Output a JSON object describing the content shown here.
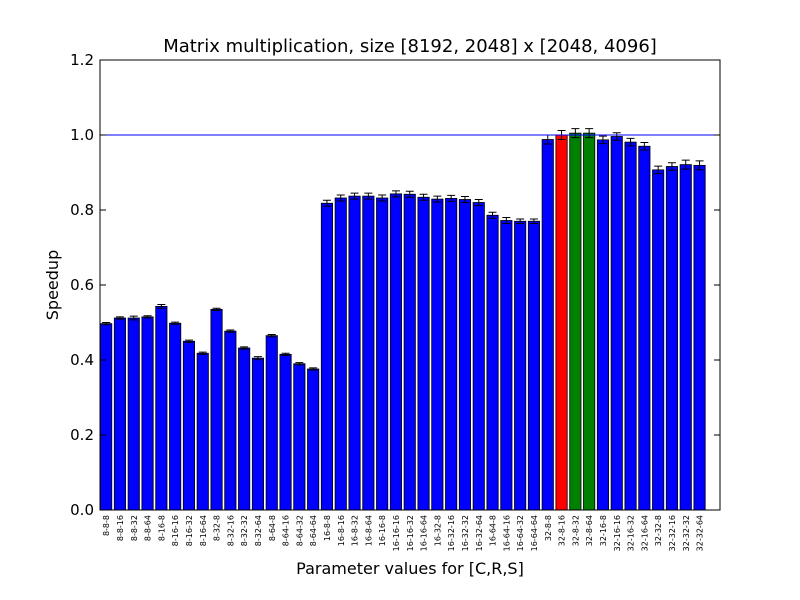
{
  "chart_data": {
    "type": "bar",
    "title": "Matrix multiplication, size [8192, 2048] x [2048, 4096]",
    "xlabel": "Parameter values for [C,R,S]",
    "ylabel": "Speedup",
    "ylim": [
      0.0,
      1.2
    ],
    "yticks": [
      "0.0",
      "0.2",
      "0.4",
      "0.6",
      "0.8",
      "1.0",
      "1.2"
    ],
    "reference_line": {
      "y": 1.0,
      "color": "#0000ff"
    },
    "grid": false,
    "colors": {
      "default": "#0000ff",
      "red": "#ff0000",
      "green": "#008000",
      "error_bar": "#000000"
    },
    "categories": [
      "8-8-8",
      "8-8-16",
      "8-8-32",
      "8-8-64",
      "8-16-8",
      "8-16-16",
      "8-16-32",
      "8-16-64",
      "8-32-8",
      "8-32-16",
      "8-32-32",
      "8-32-64",
      "8-64-8",
      "8-64-16",
      "8-64-32",
      "8-64-64",
      "16-8-8",
      "16-8-16",
      "16-8-32",
      "16-8-64",
      "16-16-8",
      "16-16-16",
      "16-16-32",
      "16-16-64",
      "16-32-8",
      "16-32-16",
      "16-32-32",
      "16-32-64",
      "16-64-8",
      "16-64-16",
      "16-64-32",
      "16-64-64",
      "32-8-8",
      "32-8-16",
      "32-8-32",
      "32-8-64",
      "32-16-8",
      "32-16-16",
      "32-16-32",
      "32-16-64",
      "32-32-8",
      "32-32-16",
      "32-32-32",
      "32-32-64"
    ],
    "values": [
      0.497,
      0.512,
      0.512,
      0.515,
      0.543,
      0.498,
      0.45,
      0.418,
      0.535,
      0.477,
      0.432,
      0.405,
      0.465,
      0.415,
      0.39,
      0.376,
      0.818,
      0.832,
      0.837,
      0.837,
      0.832,
      0.843,
      0.842,
      0.834,
      0.829,
      0.831,
      0.828,
      0.82,
      0.786,
      0.772,
      0.77,
      0.77,
      0.988,
      1.0,
      1.005,
      1.005,
      0.987,
      0.996,
      0.981,
      0.97,
      0.907,
      0.916,
      0.921,
      0.919
    ],
    "errors": [
      0.003,
      0.003,
      0.005,
      0.003,
      0.005,
      0.003,
      0.003,
      0.003,
      0.003,
      0.003,
      0.003,
      0.004,
      0.003,
      0.003,
      0.003,
      0.003,
      0.008,
      0.008,
      0.008,
      0.008,
      0.008,
      0.008,
      0.008,
      0.008,
      0.008,
      0.008,
      0.008,
      0.008,
      0.008,
      0.008,
      0.006,
      0.006,
      0.012,
      0.012,
      0.012,
      0.012,
      0.01,
      0.01,
      0.01,
      0.01,
      0.01,
      0.01,
      0.012,
      0.012
    ],
    "bar_colors": [
      "default",
      "default",
      "default",
      "default",
      "default",
      "default",
      "default",
      "default",
      "default",
      "default",
      "default",
      "default",
      "default",
      "default",
      "default",
      "default",
      "default",
      "default",
      "default",
      "default",
      "default",
      "default",
      "default",
      "default",
      "default",
      "default",
      "default",
      "default",
      "default",
      "default",
      "default",
      "default",
      "default",
      "red",
      "green",
      "green",
      "default",
      "default",
      "default",
      "default",
      "default",
      "default",
      "default",
      "default"
    ]
  }
}
